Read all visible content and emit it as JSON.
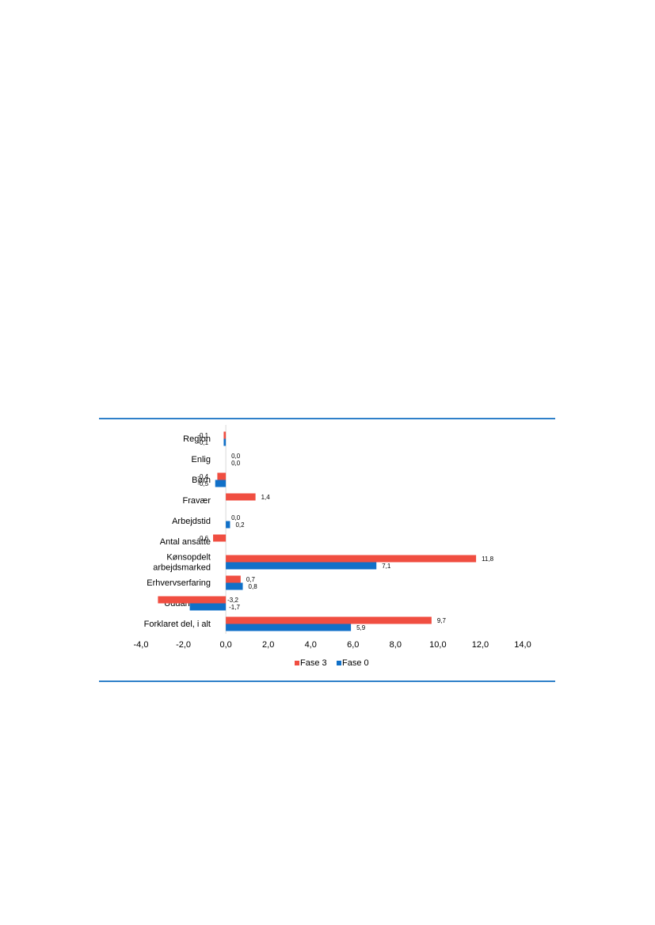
{
  "chart_data": {
    "type": "bar",
    "orientation": "horizontal",
    "categories": [
      "Region",
      "Enlig",
      "Børn",
      "Fravær",
      "Arbejdstid",
      "Antal ansatte",
      "Kønsopdelt arbejdsmarked",
      "Erhvervserfaring",
      "Uddannelse",
      "Forklaret del, i alt"
    ],
    "category_lines": [
      [
        "Region"
      ],
      [
        "Enlig"
      ],
      [
        "Børn"
      ],
      [
        "Fravær"
      ],
      [
        "Arbejdstid"
      ],
      [
        "Antal ansatte"
      ],
      [
        "Kønsopdelt",
        "arbejdsmarked"
      ],
      [
        "Erhvervserfaring"
      ],
      [
        "Uddannelse"
      ],
      [
        "Forklaret del, i alt"
      ]
    ],
    "series": [
      {
        "name": "Fase 3",
        "color": "#f04e41",
        "values": [
          -0.1,
          0.0,
          -0.4,
          1.4,
          0.0,
          -0.6,
          11.8,
          0.7,
          -3.2,
          9.7
        ],
        "labels": [
          "-0,1",
          "0,0",
          "-0,4",
          "1,4",
          "0,0",
          "-0,6",
          "11,8",
          "0,7",
          "-3,2",
          "9,7"
        ]
      },
      {
        "name": "Fase 0",
        "color": "#1070c8",
        "values": [
          -0.1,
          0.0,
          -0.5,
          null,
          0.2,
          null,
          7.1,
          0.8,
          -1.7,
          5.9
        ],
        "labels": [
          "-0,1",
          "0,0",
          "-0,5",
          null,
          "0,2",
          null,
          "7,1",
          "0,8",
          "-1,7",
          "5,9"
        ]
      }
    ],
    "xlim": [
      -4.0,
      14.0
    ],
    "xticks": [
      -4.0,
      -2.0,
      0.0,
      2.0,
      4.0,
      6.0,
      8.0,
      10.0,
      12.0,
      14.0
    ],
    "xtick_labels": [
      "-4,0",
      "-2,0",
      "0,0",
      "2,0",
      "4,0",
      "6,0",
      "8,0",
      "10,0",
      "12,0",
      "14,0"
    ],
    "grid": false,
    "legend_position": "bottom",
    "title": "",
    "xlabel": "",
    "ylabel": ""
  }
}
